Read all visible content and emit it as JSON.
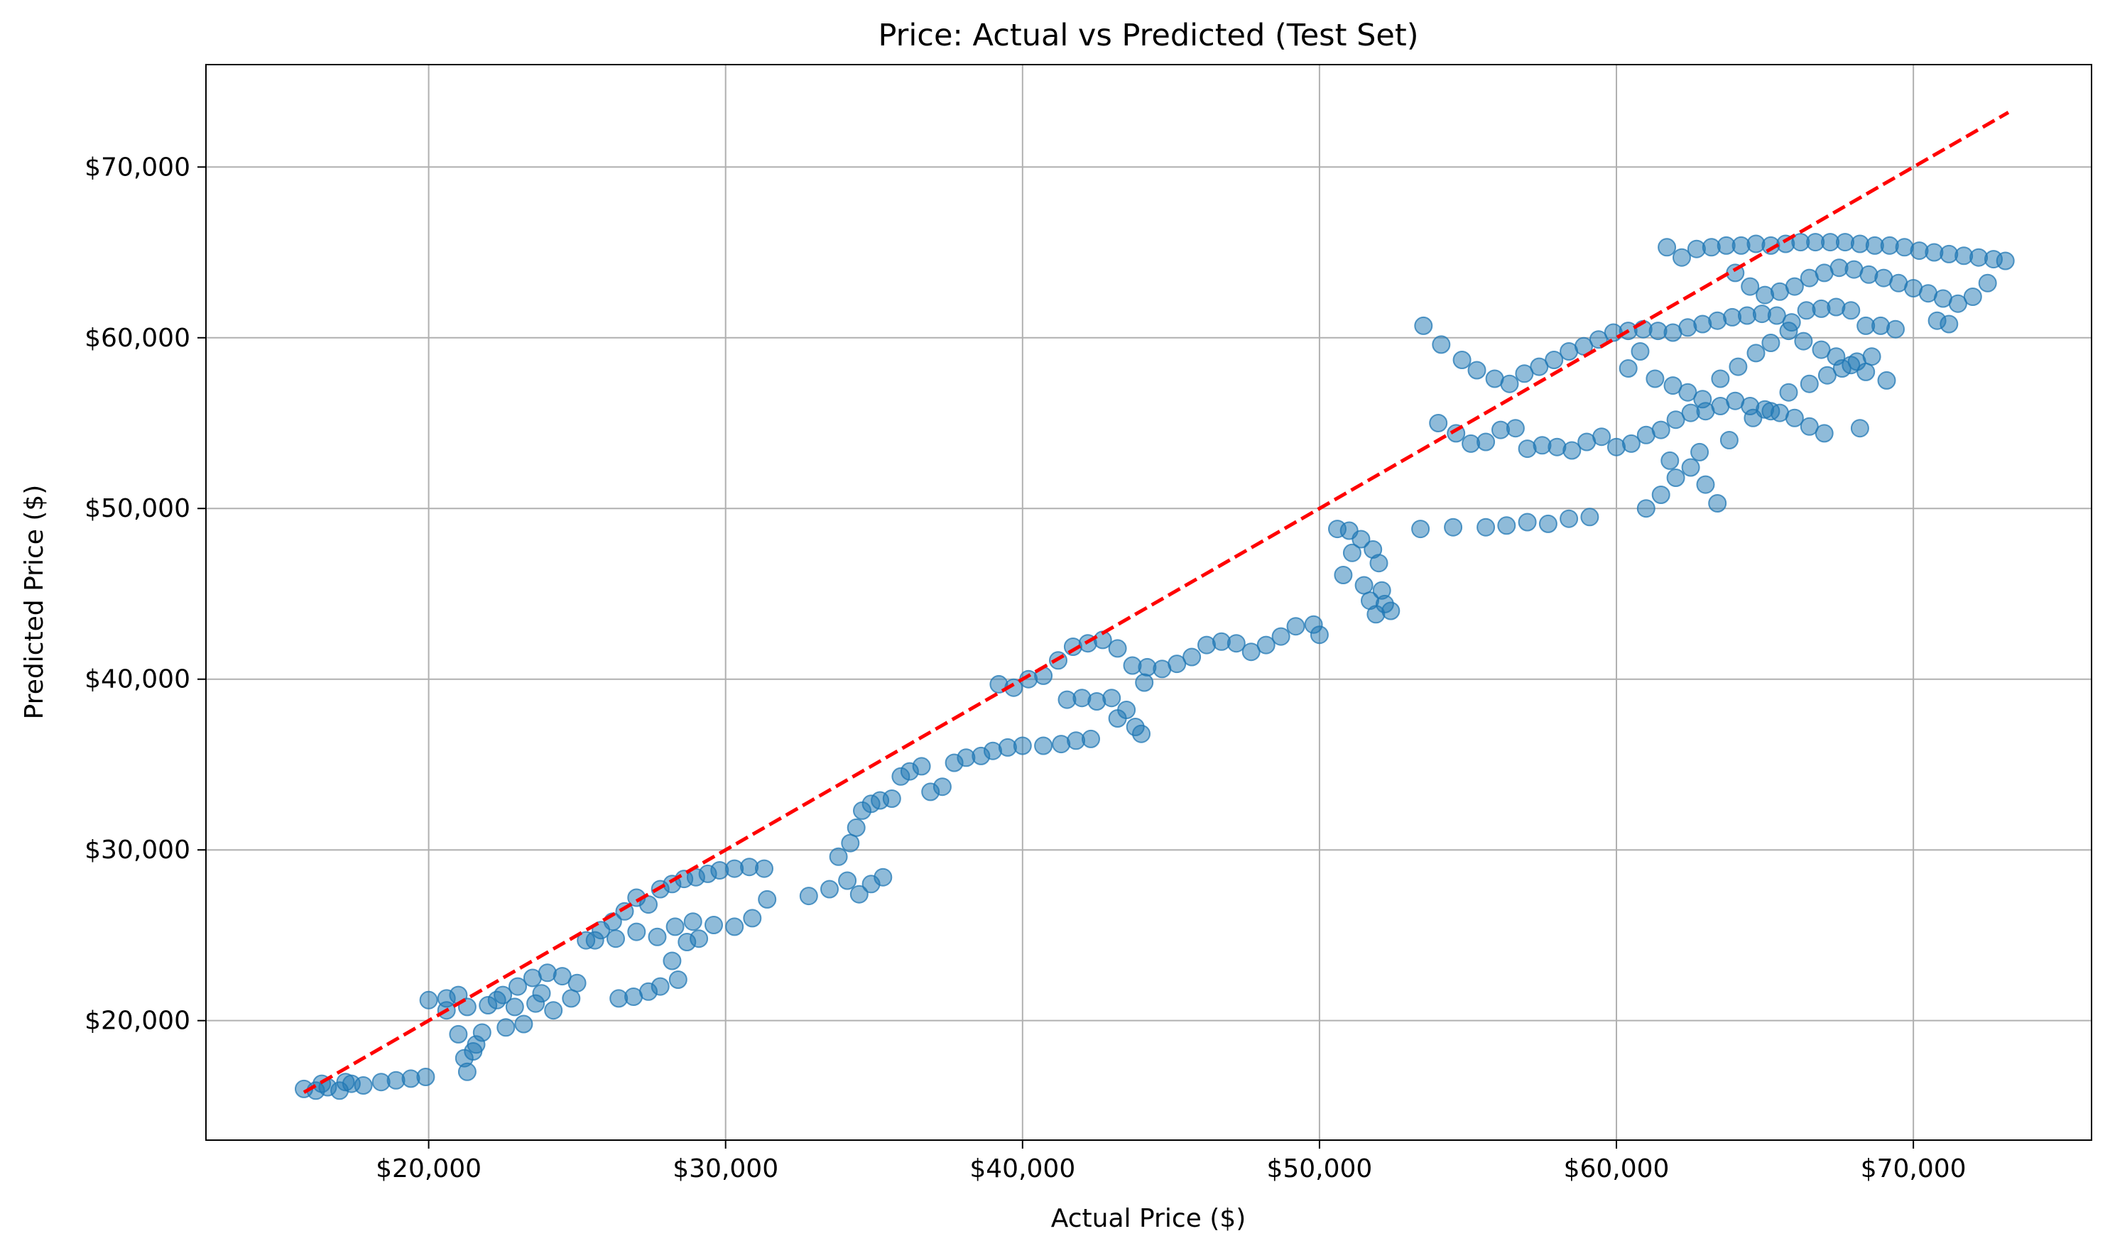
{
  "chart_data": {
    "type": "scatter",
    "title": "Price: Actual vs Predicted (Test Set)",
    "xlabel": "Actual Price ($)",
    "ylabel": "Predicted Price ($)",
    "xlim": [
      12500,
      76000
    ],
    "ylim": [
      13000,
      76000
    ],
    "grid": true,
    "xticks": [
      20000,
      30000,
      40000,
      50000,
      60000,
      70000
    ],
    "xtick_labels": [
      "$20,000",
      "$30,000",
      "$40,000",
      "$50,000",
      "$60,000",
      "$70,000"
    ],
    "yticks": [
      20000,
      30000,
      40000,
      50000,
      60000,
      70000
    ],
    "ytick_labels": [
      "$20,000",
      "$30,000",
      "$40,000",
      "$50,000",
      "$60,000",
      "$70,000"
    ],
    "colors": {
      "points": "#1f77b4",
      "ideal_line": "#ff0000"
    },
    "reference_line": {
      "style": "dashed",
      "color": "#ff0000",
      "x": [
        15800,
        73200
      ],
      "y": [
        15800,
        73200
      ]
    },
    "series": [
      {
        "values": [
          [
            15800,
            16000
          ],
          [
            16200,
            15900
          ],
          [
            16600,
            16100
          ],
          [
            17000,
            15900
          ],
          [
            17400,
            16300
          ],
          [
            17800,
            16200
          ],
          [
            18400,
            16400
          ],
          [
            18900,
            16500
          ],
          [
            19400,
            16600
          ],
          [
            19900,
            16700
          ],
          [
            16400,
            16300
          ],
          [
            17200,
            16400
          ],
          [
            20000,
            21200
          ],
          [
            20600,
            21300
          ],
          [
            21000,
            21500
          ],
          [
            20600,
            20600
          ],
          [
            21300,
            20800
          ],
          [
            21000,
            19200
          ],
          [
            21200,
            17800
          ],
          [
            21300,
            17000
          ],
          [
            21600,
            18600
          ],
          [
            21800,
            19300
          ],
          [
            21500,
            18200
          ],
          [
            22000,
            20900
          ],
          [
            22500,
            21500
          ],
          [
            23000,
            22000
          ],
          [
            23500,
            22500
          ],
          [
            24000,
            22800
          ],
          [
            24500,
            22600
          ],
          [
            22600,
            19600
          ],
          [
            23200,
            19800
          ],
          [
            22900,
            20800
          ],
          [
            23800,
            21600
          ],
          [
            24200,
            20600
          ],
          [
            24800,
            21300
          ],
          [
            25000,
            22200
          ],
          [
            22300,
            21200
          ],
          [
            23600,
            21000
          ],
          [
            25300,
            24700
          ],
          [
            25800,
            25300
          ],
          [
            26200,
            25800
          ],
          [
            26600,
            26400
          ],
          [
            27000,
            27200
          ],
          [
            27400,
            26800
          ],
          [
            27800,
            27700
          ],
          [
            28200,
            28000
          ],
          [
            28600,
            28300
          ],
          [
            29000,
            28400
          ],
          [
            29400,
            28600
          ],
          [
            29800,
            28800
          ],
          [
            30300,
            28900
          ],
          [
            30800,
            29000
          ],
          [
            31300,
            28900
          ],
          [
            25600,
            24700
          ],
          [
            26300,
            24800
          ],
          [
            27000,
            25200
          ],
          [
            27700,
            24900
          ],
          [
            28300,
            25500
          ],
          [
            28900,
            25800
          ],
          [
            29600,
            25600
          ],
          [
            30300,
            25500
          ],
          [
            30900,
            26000
          ],
          [
            31400,
            27100
          ],
          [
            26400,
            21300
          ],
          [
            26900,
            21400
          ],
          [
            27400,
            21700
          ],
          [
            27800,
            22000
          ],
          [
            28200,
            23500
          ],
          [
            28400,
            22400
          ],
          [
            28700,
            24600
          ],
          [
            29100,
            24800
          ],
          [
            32800,
            27300
          ],
          [
            33500,
            27700
          ],
          [
            34100,
            28200
          ],
          [
            34500,
            27400
          ],
          [
            34900,
            28000
          ],
          [
            35300,
            28400
          ],
          [
            33800,
            29600
          ],
          [
            34200,
            30400
          ],
          [
            34400,
            31300
          ],
          [
            34600,
            32300
          ],
          [
            34900,
            32700
          ],
          [
            35200,
            32900
          ],
          [
            35600,
            33000
          ],
          [
            35900,
            34300
          ],
          [
            36200,
            34600
          ],
          [
            36600,
            34900
          ],
          [
            36900,
            33400
          ],
          [
            37300,
            33700
          ],
          [
            37700,
            35100
          ],
          [
            38100,
            35400
          ],
          [
            38600,
            35500
          ],
          [
            39000,
            35800
          ],
          [
            39500,
            36000
          ],
          [
            40000,
            36100
          ],
          [
            40700,
            36100
          ],
          [
            41300,
            36200
          ],
          [
            41800,
            36400
          ],
          [
            42300,
            36500
          ],
          [
            39200,
            39700
          ],
          [
            39700,
            39500
          ],
          [
            40200,
            40000
          ],
          [
            40700,
            40200
          ],
          [
            41200,
            41100
          ],
          [
            41700,
            41900
          ],
          [
            42200,
            42100
          ],
          [
            42700,
            42300
          ],
          [
            43200,
            41800
          ],
          [
            43700,
            40800
          ],
          [
            44200,
            40700
          ],
          [
            44700,
            40600
          ],
          [
            45200,
            40900
          ],
          [
            45700,
            41300
          ],
          [
            46200,
            42000
          ],
          [
            46700,
            42200
          ],
          [
            47200,
            42100
          ],
          [
            47700,
            41600
          ],
          [
            48200,
            42000
          ],
          [
            48700,
            42500
          ],
          [
            49200,
            43100
          ],
          [
            49800,
            43200
          ],
          [
            50000,
            42600
          ],
          [
            41500,
            38800
          ],
          [
            42000,
            38900
          ],
          [
            42500,
            38700
          ],
          [
            43000,
            38900
          ],
          [
            43500,
            38200
          ],
          [
            43800,
            37200
          ],
          [
            44000,
            36800
          ],
          [
            43200,
            37700
          ],
          [
            44100,
            39800
          ],
          [
            50600,
            48800
          ],
          [
            51000,
            48700
          ],
          [
            51400,
            48200
          ],
          [
            51800,
            47600
          ],
          [
            52000,
            46800
          ],
          [
            51500,
            45500
          ],
          [
            51700,
            44600
          ],
          [
            51900,
            43800
          ],
          [
            52200,
            44400
          ],
          [
            52400,
            44000
          ],
          [
            51100,
            47400
          ],
          [
            50800,
            46100
          ],
          [
            52100,
            45200
          ],
          [
            53400,
            48800
          ],
          [
            54500,
            48900
          ],
          [
            55600,
            48900
          ],
          [
            56300,
            49000
          ],
          [
            57000,
            49200
          ],
          [
            57700,
            49100
          ],
          [
            58400,
            49400
          ],
          [
            59100,
            49500
          ],
          [
            54000,
            55000
          ],
          [
            54600,
            54400
          ],
          [
            55100,
            53800
          ],
          [
            55600,
            53900
          ],
          [
            56100,
            54600
          ],
          [
            56600,
            54700
          ],
          [
            57000,
            53500
          ],
          [
            57500,
            53700
          ],
          [
            58000,
            53600
          ],
          [
            58500,
            53400
          ],
          [
            59000,
            53900
          ],
          [
            59500,
            54200
          ],
          [
            60000,
            53600
          ],
          [
            60500,
            53800
          ],
          [
            61000,
            54300
          ],
          [
            61500,
            54600
          ],
          [
            62000,
            55200
          ],
          [
            62500,
            55600
          ],
          [
            63000,
            55700
          ],
          [
            63500,
            56000
          ],
          [
            64000,
            56300
          ],
          [
            64500,
            56000
          ],
          [
            65000,
            55800
          ],
          [
            65500,
            55600
          ],
          [
            66000,
            55300
          ],
          [
            66500,
            54800
          ],
          [
            67000,
            54400
          ],
          [
            68200,
            54700
          ],
          [
            53500,
            60700
          ],
          [
            54100,
            59600
          ],
          [
            54800,
            58700
          ],
          [
            55300,
            58100
          ],
          [
            55900,
            57600
          ],
          [
            56400,
            57300
          ],
          [
            56900,
            57900
          ],
          [
            57400,
            58300
          ],
          [
            57900,
            58700
          ],
          [
            58400,
            59200
          ],
          [
            58900,
            59500
          ],
          [
            59400,
            59900
          ],
          [
            59900,
            60300
          ],
          [
            60400,
            60400
          ],
          [
            60900,
            60500
          ],
          [
            61400,
            60400
          ],
          [
            61900,
            60300
          ],
          [
            62400,
            60600
          ],
          [
            62900,
            60800
          ],
          [
            63400,
            61000
          ],
          [
            63900,
            61200
          ],
          [
            64400,
            61300
          ],
          [
            64900,
            61400
          ],
          [
            65400,
            61300
          ],
          [
            65900,
            60900
          ],
          [
            66400,
            61600
          ],
          [
            66900,
            61700
          ],
          [
            67400,
            61800
          ],
          [
            67900,
            61600
          ],
          [
            68400,
            60700
          ],
          [
            68900,
            60700
          ],
          [
            69400,
            60500
          ],
          [
            61700,
            65300
          ],
          [
            62200,
            64700
          ],
          [
            62700,
            65200
          ],
          [
            63200,
            65300
          ],
          [
            63700,
            65400
          ],
          [
            64200,
            65400
          ],
          [
            64700,
            65500
          ],
          [
            65200,
            65400
          ],
          [
            65700,
            65500
          ],
          [
            66200,
            65600
          ],
          [
            66700,
            65600
          ],
          [
            67200,
            65600
          ],
          [
            67700,
            65600
          ],
          [
            68200,
            65500
          ],
          [
            68700,
            65400
          ],
          [
            69200,
            65400
          ],
          [
            69700,
            65300
          ],
          [
            70200,
            65100
          ],
          [
            70700,
            65000
          ],
          [
            71200,
            64900
          ],
          [
            71700,
            64800
          ],
          [
            72200,
            64700
          ],
          [
            72700,
            64600
          ],
          [
            73100,
            64500
          ],
          [
            64000,
            63800
          ],
          [
            64500,
            63000
          ],
          [
            65000,
            62500
          ],
          [
            65500,
            62700
          ],
          [
            66000,
            63000
          ],
          [
            66500,
            63500
          ],
          [
            67000,
            63800
          ],
          [
            67500,
            64100
          ],
          [
            68000,
            64000
          ],
          [
            68500,
            63700
          ],
          [
            69000,
            63500
          ],
          [
            69500,
            63200
          ],
          [
            70000,
            62900
          ],
          [
            70500,
            62600
          ],
          [
            71000,
            62300
          ],
          [
            71500,
            62000
          ],
          [
            72000,
            62400
          ],
          [
            72500,
            63200
          ],
          [
            70800,
            61000
          ],
          [
            71200,
            60800
          ],
          [
            61000,
            50000
          ],
          [
            61500,
            50800
          ],
          [
            62000,
            51800
          ],
          [
            62500,
            52400
          ],
          [
            63000,
            51400
          ],
          [
            63400,
            50300
          ],
          [
            62800,
            53300
          ],
          [
            61800,
            52800
          ],
          [
            63800,
            54000
          ],
          [
            64600,
            55300
          ],
          [
            65200,
            55700
          ],
          [
            65800,
            56800
          ],
          [
            66500,
            57300
          ],
          [
            67100,
            57800
          ],
          [
            67600,
            58200
          ],
          [
            68100,
            58600
          ],
          [
            68600,
            58900
          ],
          [
            69100,
            57500
          ],
          [
            60400,
            58200
          ],
          [
            60800,
            59200
          ],
          [
            61300,
            57600
          ],
          [
            61900,
            57200
          ],
          [
            62400,
            56800
          ],
          [
            62900,
            56400
          ],
          [
            63500,
            57600
          ],
          [
            64100,
            58300
          ],
          [
            64700,
            59100
          ],
          [
            65200,
            59700
          ],
          [
            65800,
            60400
          ],
          [
            66300,
            59800
          ],
          [
            66900,
            59300
          ],
          [
            67400,
            58900
          ],
          [
            67900,
            58400
          ],
          [
            68400,
            58000
          ]
        ]
      }
    ]
  }
}
